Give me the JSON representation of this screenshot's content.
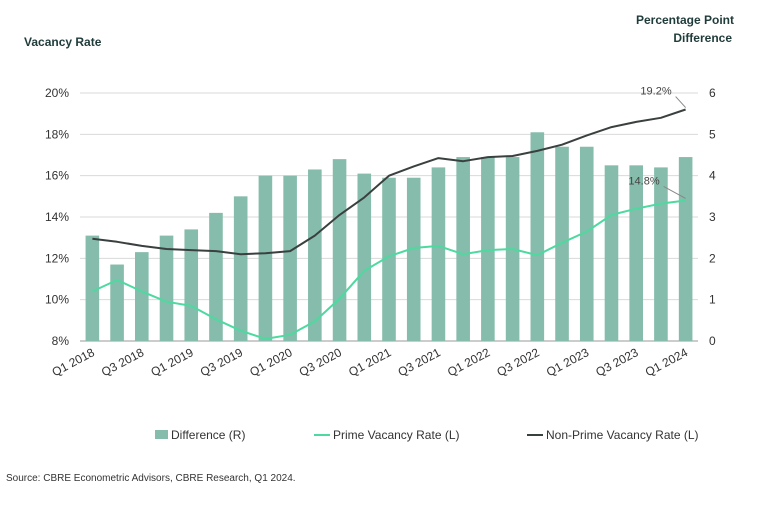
{
  "chart_data": {
    "type": "bar+line",
    "left_axis_title": "Vacancy Rate",
    "right_axis_title_lines": [
      "Percentage Point",
      "Difference"
    ],
    "left_ylim": [
      8,
      20
    ],
    "left_ticks": [
      "8%",
      "10%",
      "12%",
      "14%",
      "16%",
      "18%",
      "20%"
    ],
    "left_tick_values": [
      8,
      10,
      12,
      14,
      16,
      18,
      20
    ],
    "right_ylim": [
      0,
      6
    ],
    "right_ticks": [
      "0",
      "1",
      "2",
      "3",
      "4",
      "5",
      "6"
    ],
    "right_tick_values": [
      0,
      1,
      2,
      3,
      4,
      5,
      6
    ],
    "categories": [
      "Q1 2018",
      "Q2 2018",
      "Q3 2018",
      "Q4 2018",
      "Q1 2019",
      "Q2 2019",
      "Q3 2019",
      "Q4 2019",
      "Q1 2020",
      "Q2 2020",
      "Q3 2020",
      "Q4 2020",
      "Q1 2021",
      "Q2 2021",
      "Q3 2021",
      "Q4 2021",
      "Q1 2022",
      "Q2 2022",
      "Q3 2022",
      "Q4 2022",
      "Q1 2023",
      "Q2 2023",
      "Q3 2023",
      "Q4 2023",
      "Q1 2024"
    ],
    "x_tick_labels": [
      "Q1 2018",
      "",
      "Q3 2018",
      "",
      "Q1 2019",
      "",
      "Q3 2019",
      "",
      "Q1 2020",
      "",
      "Q3 2020",
      "",
      "Q1 2021",
      "",
      "Q3 2021",
      "",
      "Q1 2022",
      "",
      "Q3 2022",
      "",
      "Q1 2023",
      "",
      "Q3 2023",
      "",
      "Q1 2024"
    ],
    "series": [
      {
        "name": "Difference (R)",
        "kind": "bar",
        "axis": "right",
        "color": "#86bcab",
        "values": [
          2.55,
          1.85,
          2.15,
          2.55,
          2.7,
          3.1,
          3.5,
          4.0,
          4.0,
          4.15,
          4.4,
          4.05,
          3.95,
          3.95,
          4.2,
          4.45,
          4.45,
          4.45,
          5.05,
          4.7,
          4.7,
          4.25,
          4.25,
          4.2,
          4.45
        ]
      },
      {
        "name": "Prime Vacancy Rate (L)",
        "kind": "line",
        "axis": "left",
        "color": "#4dd9a0",
        "values": [
          10.4,
          10.95,
          10.4,
          9.9,
          9.7,
          9.05,
          8.5,
          8.1,
          8.3,
          8.95,
          10.05,
          11.4,
          12.1,
          12.5,
          12.6,
          12.2,
          12.4,
          12.45,
          12.15,
          12.75,
          13.3,
          14.1,
          14.4,
          14.65,
          14.8
        ]
      },
      {
        "name": "Non-Prime Vacancy Rate (L)",
        "kind": "line",
        "axis": "left",
        "color": "#3a4040",
        "values": [
          12.95,
          12.8,
          12.6,
          12.45,
          12.4,
          12.35,
          12.2,
          12.25,
          12.35,
          13.1,
          14.1,
          14.95,
          16.0,
          16.45,
          16.85,
          16.7,
          16.9,
          16.95,
          17.2,
          17.5,
          17.95,
          18.35,
          18.6,
          18.8,
          19.2
        ]
      }
    ],
    "annotations": [
      {
        "text": "19.2%",
        "series": "Non-Prime Vacancy Rate (L)",
        "index": 24
      },
      {
        "text": "14.8%",
        "series": "Prime Vacancy Rate (L)",
        "index": 24
      }
    ],
    "legend_position": "bottom",
    "grid": "horizontal",
    "source": "Source: CBRE Econometric Advisors, CBRE Research, Q1 2024."
  }
}
